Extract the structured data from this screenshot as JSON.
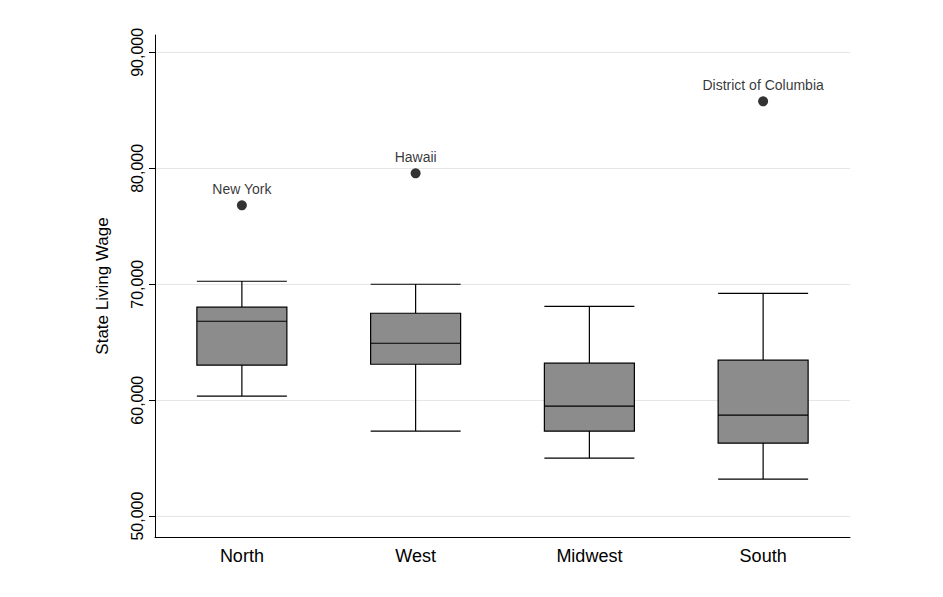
{
  "chart_data": {
    "type": "boxplot",
    "y_label": "State Living Wage",
    "categories": [
      "North",
      "West",
      "Midwest",
      "South"
    ],
    "whisker_low": [
      60350,
      57330,
      55000,
      53190
    ],
    "q1": [
      63020,
      63100,
      57330,
      56290
    ],
    "median": [
      66810,
      64910,
      59480,
      58710
    ],
    "q3": [
      68020,
      67500,
      63190,
      63450
    ],
    "whisker_high": [
      70260,
      70000,
      68100,
      69220
    ],
    "color": "#8c8c8c",
    "outliers": {
      "color": "#000000",
      "marker": "circle",
      "points": [
        {
          "category": "North",
          "label": "New York",
          "value": 76810
        },
        {
          "category": "West",
          "label": "Hawaii",
          "value": 79570
        },
        {
          "category": "South",
          "label": "District of Columbia",
          "value": 85780
        }
      ]
    },
    "ylim": [
      48200,
      91500
    ],
    "yticks": [
      {
        "value": 50000,
        "label": "50,000"
      },
      {
        "value": 60000,
        "label": "60,000"
      },
      {
        "value": 70000,
        "label": "70,000"
      },
      {
        "value": 80000,
        "label": "80,000"
      },
      {
        "value": 90000,
        "label": "90,000"
      }
    ],
    "grid": true
  }
}
